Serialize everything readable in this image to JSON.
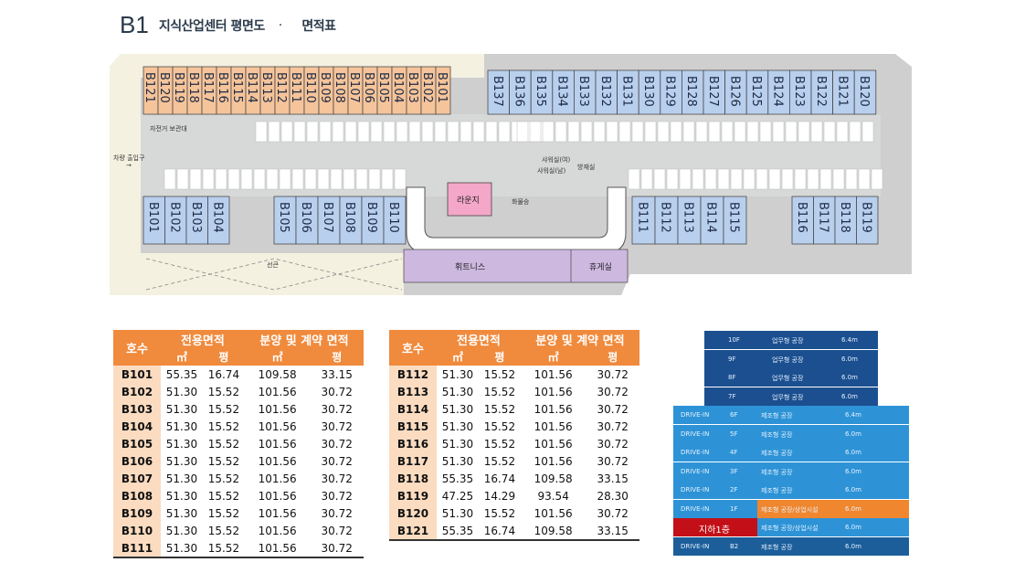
{
  "title": {
    "main": "B1",
    "sub": "지식산업센터 평면도",
    "dot": "·",
    "tail": "면적표"
  },
  "plan": {
    "top_orange": [
      "B121",
      "B120",
      "B119",
      "B118",
      "B117",
      "B116",
      "B115",
      "B114",
      "B113",
      "B112",
      "B111",
      "B110",
      "B109",
      "B108",
      "B107",
      "B106",
      "B105",
      "B104",
      "B103",
      "B102",
      "B101"
    ],
    "top_blue": [
      "B137",
      "B136",
      "B135",
      "B134",
      "B133",
      "B132",
      "B131",
      "B130",
      "B129",
      "B128",
      "B127",
      "B126",
      "B125",
      "B124",
      "B123",
      "B122",
      "B121",
      "B120"
    ],
    "bottom_left": [
      "B101",
      "B102",
      "B103",
      "B104"
    ],
    "bottom_mid": [
      "B105",
      "B106",
      "B107",
      "B108",
      "B109",
      "B110"
    ],
    "bottom_right_a": [
      "B111",
      "B112",
      "B113",
      "B114",
      "B115"
    ],
    "bottom_right_b": [
      "B116",
      "B117",
      "B118",
      "B119"
    ],
    "lounge": "라운지",
    "fitness": "휘트니스",
    "rest": "휴게실",
    "bike": "자전거 보관대",
    "entrance": "차량 출입구",
    "shower_f": "샤워실(여)",
    "shower_m": "샤워실(남)",
    "storage": "방재실",
    "elev": "화물승",
    "canopy": "선큰"
  },
  "table_left": {
    "h_unit": "호수",
    "h_area": "전용면적",
    "h_sale": "분양 및 계약 면적",
    "u_m2": "㎡",
    "u_py": "평",
    "rows": [
      [
        "B101",
        "55.35",
        "16.74",
        "109.58",
        "33.15"
      ],
      [
        "B102",
        "51.30",
        "15.52",
        "101.56",
        "30.72"
      ],
      [
        "B103",
        "51.30",
        "15.52",
        "101.56",
        "30.72"
      ],
      [
        "B104",
        "51.30",
        "15.52",
        "101.56",
        "30.72"
      ],
      [
        "B105",
        "51.30",
        "15.52",
        "101.56",
        "30.72"
      ],
      [
        "B106",
        "51.30",
        "15.52",
        "101.56",
        "30.72"
      ],
      [
        "B107",
        "51.30",
        "15.52",
        "101.56",
        "30.72"
      ],
      [
        "B108",
        "51.30",
        "15.52",
        "101.56",
        "30.72"
      ],
      [
        "B109",
        "51.30",
        "15.52",
        "101.56",
        "30.72"
      ],
      [
        "B110",
        "51.30",
        "15.52",
        "101.56",
        "30.72"
      ],
      [
        "B111",
        "51.30",
        "15.52",
        "101.56",
        "30.72"
      ]
    ]
  },
  "table_right": {
    "h_unit": "호수",
    "h_area": "전용면적",
    "h_sale": "분양 및 계약 면적",
    "u_m2": "㎡",
    "u_py": "평",
    "rows": [
      [
        "B112",
        "51.30",
        "15.52",
        "101.56",
        "30.72"
      ],
      [
        "B113",
        "51.30",
        "15.52",
        "101.56",
        "30.72"
      ],
      [
        "B114",
        "51.30",
        "15.52",
        "101.56",
        "30.72"
      ],
      [
        "B115",
        "51.30",
        "15.52",
        "101.56",
        "30.72"
      ],
      [
        "B116",
        "51.30",
        "15.52",
        "101.56",
        "30.72"
      ],
      [
        "B117",
        "51.30",
        "15.52",
        "101.56",
        "30.72"
      ],
      [
        "B118",
        "55.35",
        "16.74",
        "109.58",
        "33.15"
      ],
      [
        "B119",
        "47.25",
        "14.29",
        "93.54",
        "28.30"
      ],
      [
        "B120",
        "51.30",
        "15.52",
        "101.56",
        "30.72"
      ],
      [
        "B121",
        "55.35",
        "16.74",
        "109.58",
        "33.15"
      ]
    ]
  },
  "section": {
    "floors": [
      {
        "left": "",
        "floor": "10F",
        "use": "업무형 공장",
        "h": "6.4m",
        "color": "#1b4f8f"
      },
      {
        "left": "",
        "floor": "9F",
        "use": "업무형 공장",
        "h": "6.0m",
        "color": "#1b4f8f"
      },
      {
        "left": "",
        "floor": "8F",
        "use": "업무형 공장",
        "h": "6.0m",
        "color": "#1b4f8f"
      },
      {
        "left": "",
        "floor": "7F",
        "use": "업무형 공장",
        "h": "6.0m",
        "color": "#1b4f8f"
      },
      {
        "left": "DRIVE-IN",
        "floor": "6F",
        "use": "제조형 공장",
        "h": "6.4m",
        "color": "#2d93d6"
      },
      {
        "left": "DRIVE-IN",
        "floor": "5F",
        "use": "제조형 공장",
        "h": "6.0m",
        "color": "#2d93d6"
      },
      {
        "left": "DRIVE-IN",
        "floor": "4F",
        "use": "제조형 공장",
        "h": "6.0m",
        "color": "#2d93d6"
      },
      {
        "left": "DRIVE-IN",
        "floor": "3F",
        "use": "제조형 공장",
        "h": "6.0m",
        "color": "#2d93d6"
      },
      {
        "left": "DRIVE-IN",
        "floor": "2F",
        "use": "제조형 공장",
        "h": "6.0m",
        "color": "#2d93d6"
      },
      {
        "left": "DRIVE-IN",
        "floor": "1F",
        "use": "제조형 공장/상업시설",
        "h": "6.0m",
        "color": "#2d93d6"
      },
      {
        "left": "지하1층",
        "floor": "",
        "use": "제조형 공장/상업시설",
        "h": "6.0m",
        "color": "#2d93d6"
      },
      {
        "left": "DRIVE-IN",
        "floor": "B2",
        "use": "제조형 공장",
        "h": "6.0m",
        "color": "#1b5e9a"
      }
    ]
  }
}
